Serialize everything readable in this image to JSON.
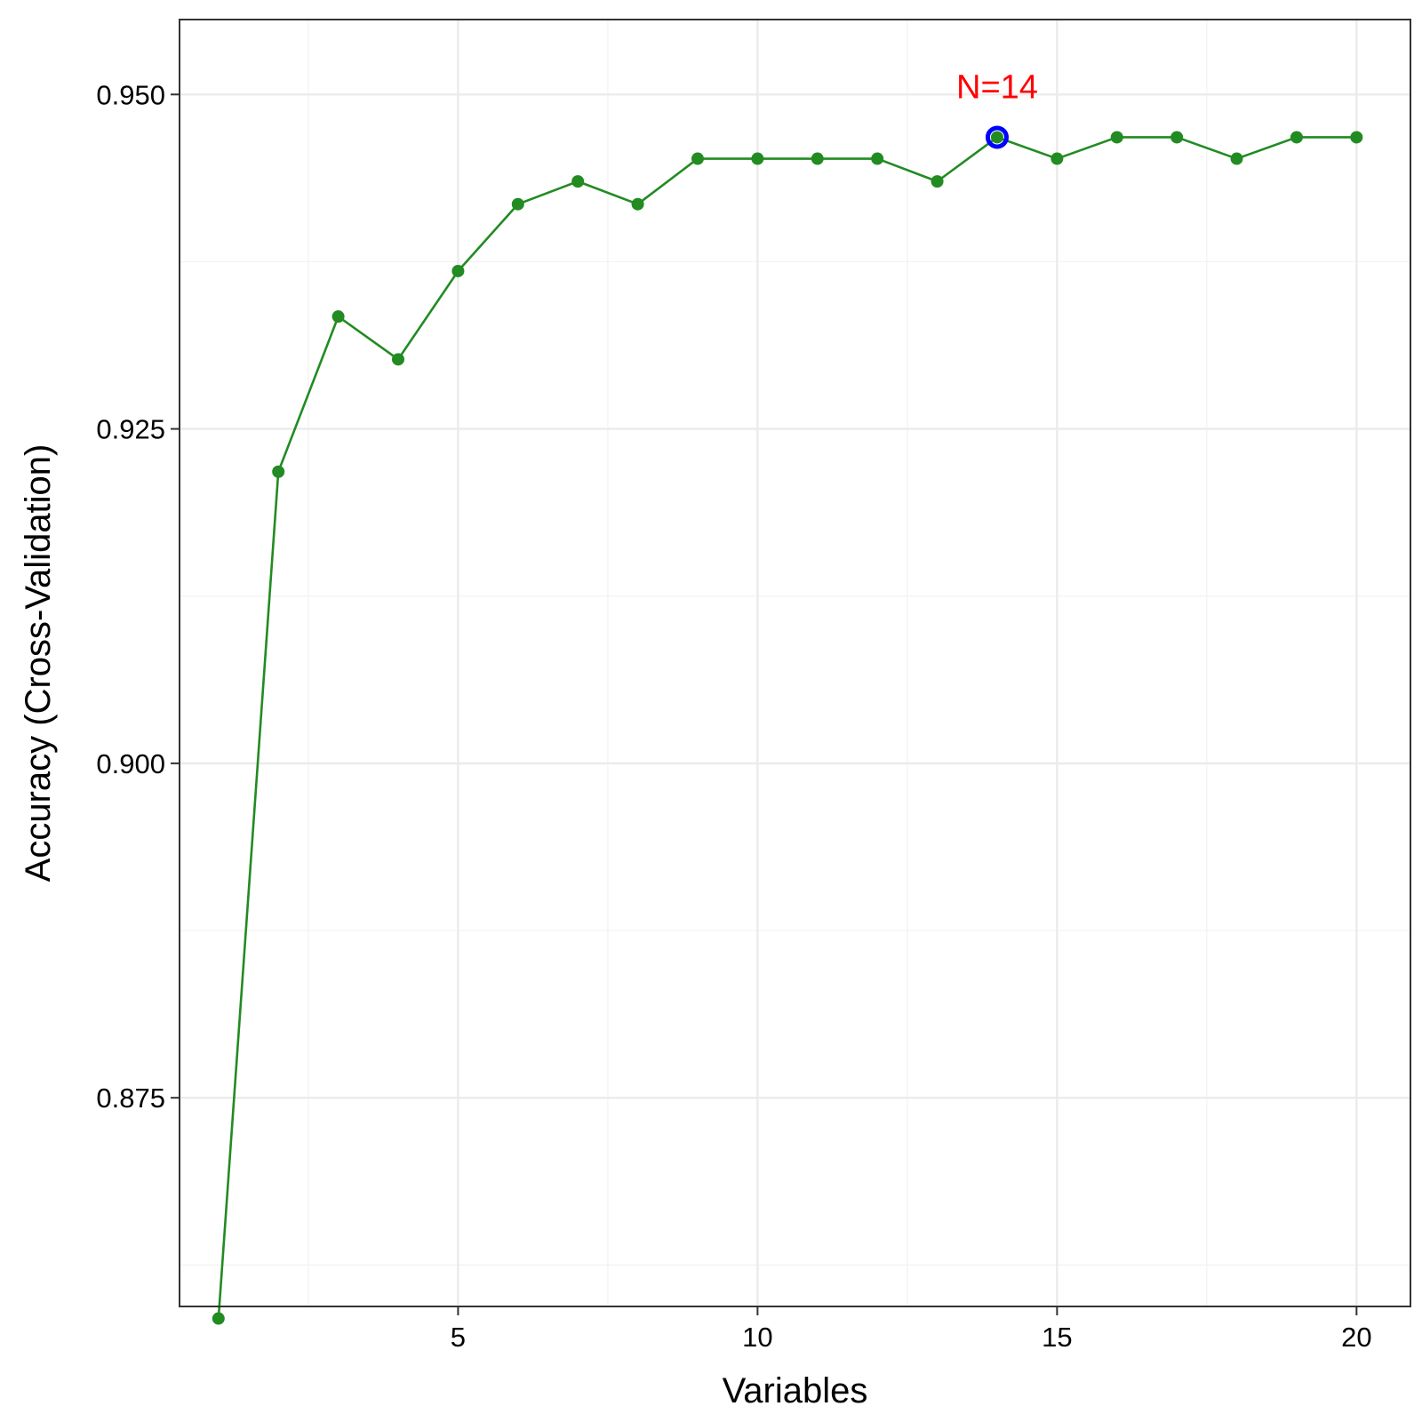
{
  "chart_data": {
    "type": "line",
    "xlabel": "Variables",
    "ylabel": "Accuracy (Cross-Validation)",
    "xlim": [
      0.35,
      20.9
    ],
    "ylim": [
      0.8594,
      0.9556
    ],
    "x_ticks": [
      5,
      10,
      15,
      20
    ],
    "x_tick_labels": [
      "5",
      "10",
      "15",
      "20"
    ],
    "y_ticks": [
      0.875,
      0.9,
      0.925,
      0.95
    ],
    "y_tick_labels": [
      "0.875",
      "0.900",
      "0.925",
      "0.950"
    ],
    "grid": true,
    "legend": "none",
    "series": [
      {
        "x": [
          1,
          2,
          3,
          4,
          5,
          6,
          7,
          8,
          9,
          10,
          11,
          12,
          13,
          14,
          15,
          16,
          17,
          18,
          19,
          20
        ],
        "values": [
          0.8585,
          0.9218,
          0.9334,
          0.9302,
          0.9368,
          0.9418,
          0.9435,
          0.9418,
          0.9452,
          0.9452,
          0.9452,
          0.9452,
          0.9435,
          0.9468,
          0.9452,
          0.9468,
          0.9468,
          0.9452,
          0.9468,
          0.9468
        ],
        "color": "#228B22"
      }
    ],
    "highlight": {
      "x": 14,
      "y": 0.9468,
      "label": "N=14",
      "marker_color": "#0000FF",
      "label_color": "#FF0000"
    },
    "colors": {
      "panel_border": "#333333",
      "grid_major": "#EBEBEB",
      "grid_minor": "#F2F2F2",
      "tick": "#333333"
    }
  }
}
